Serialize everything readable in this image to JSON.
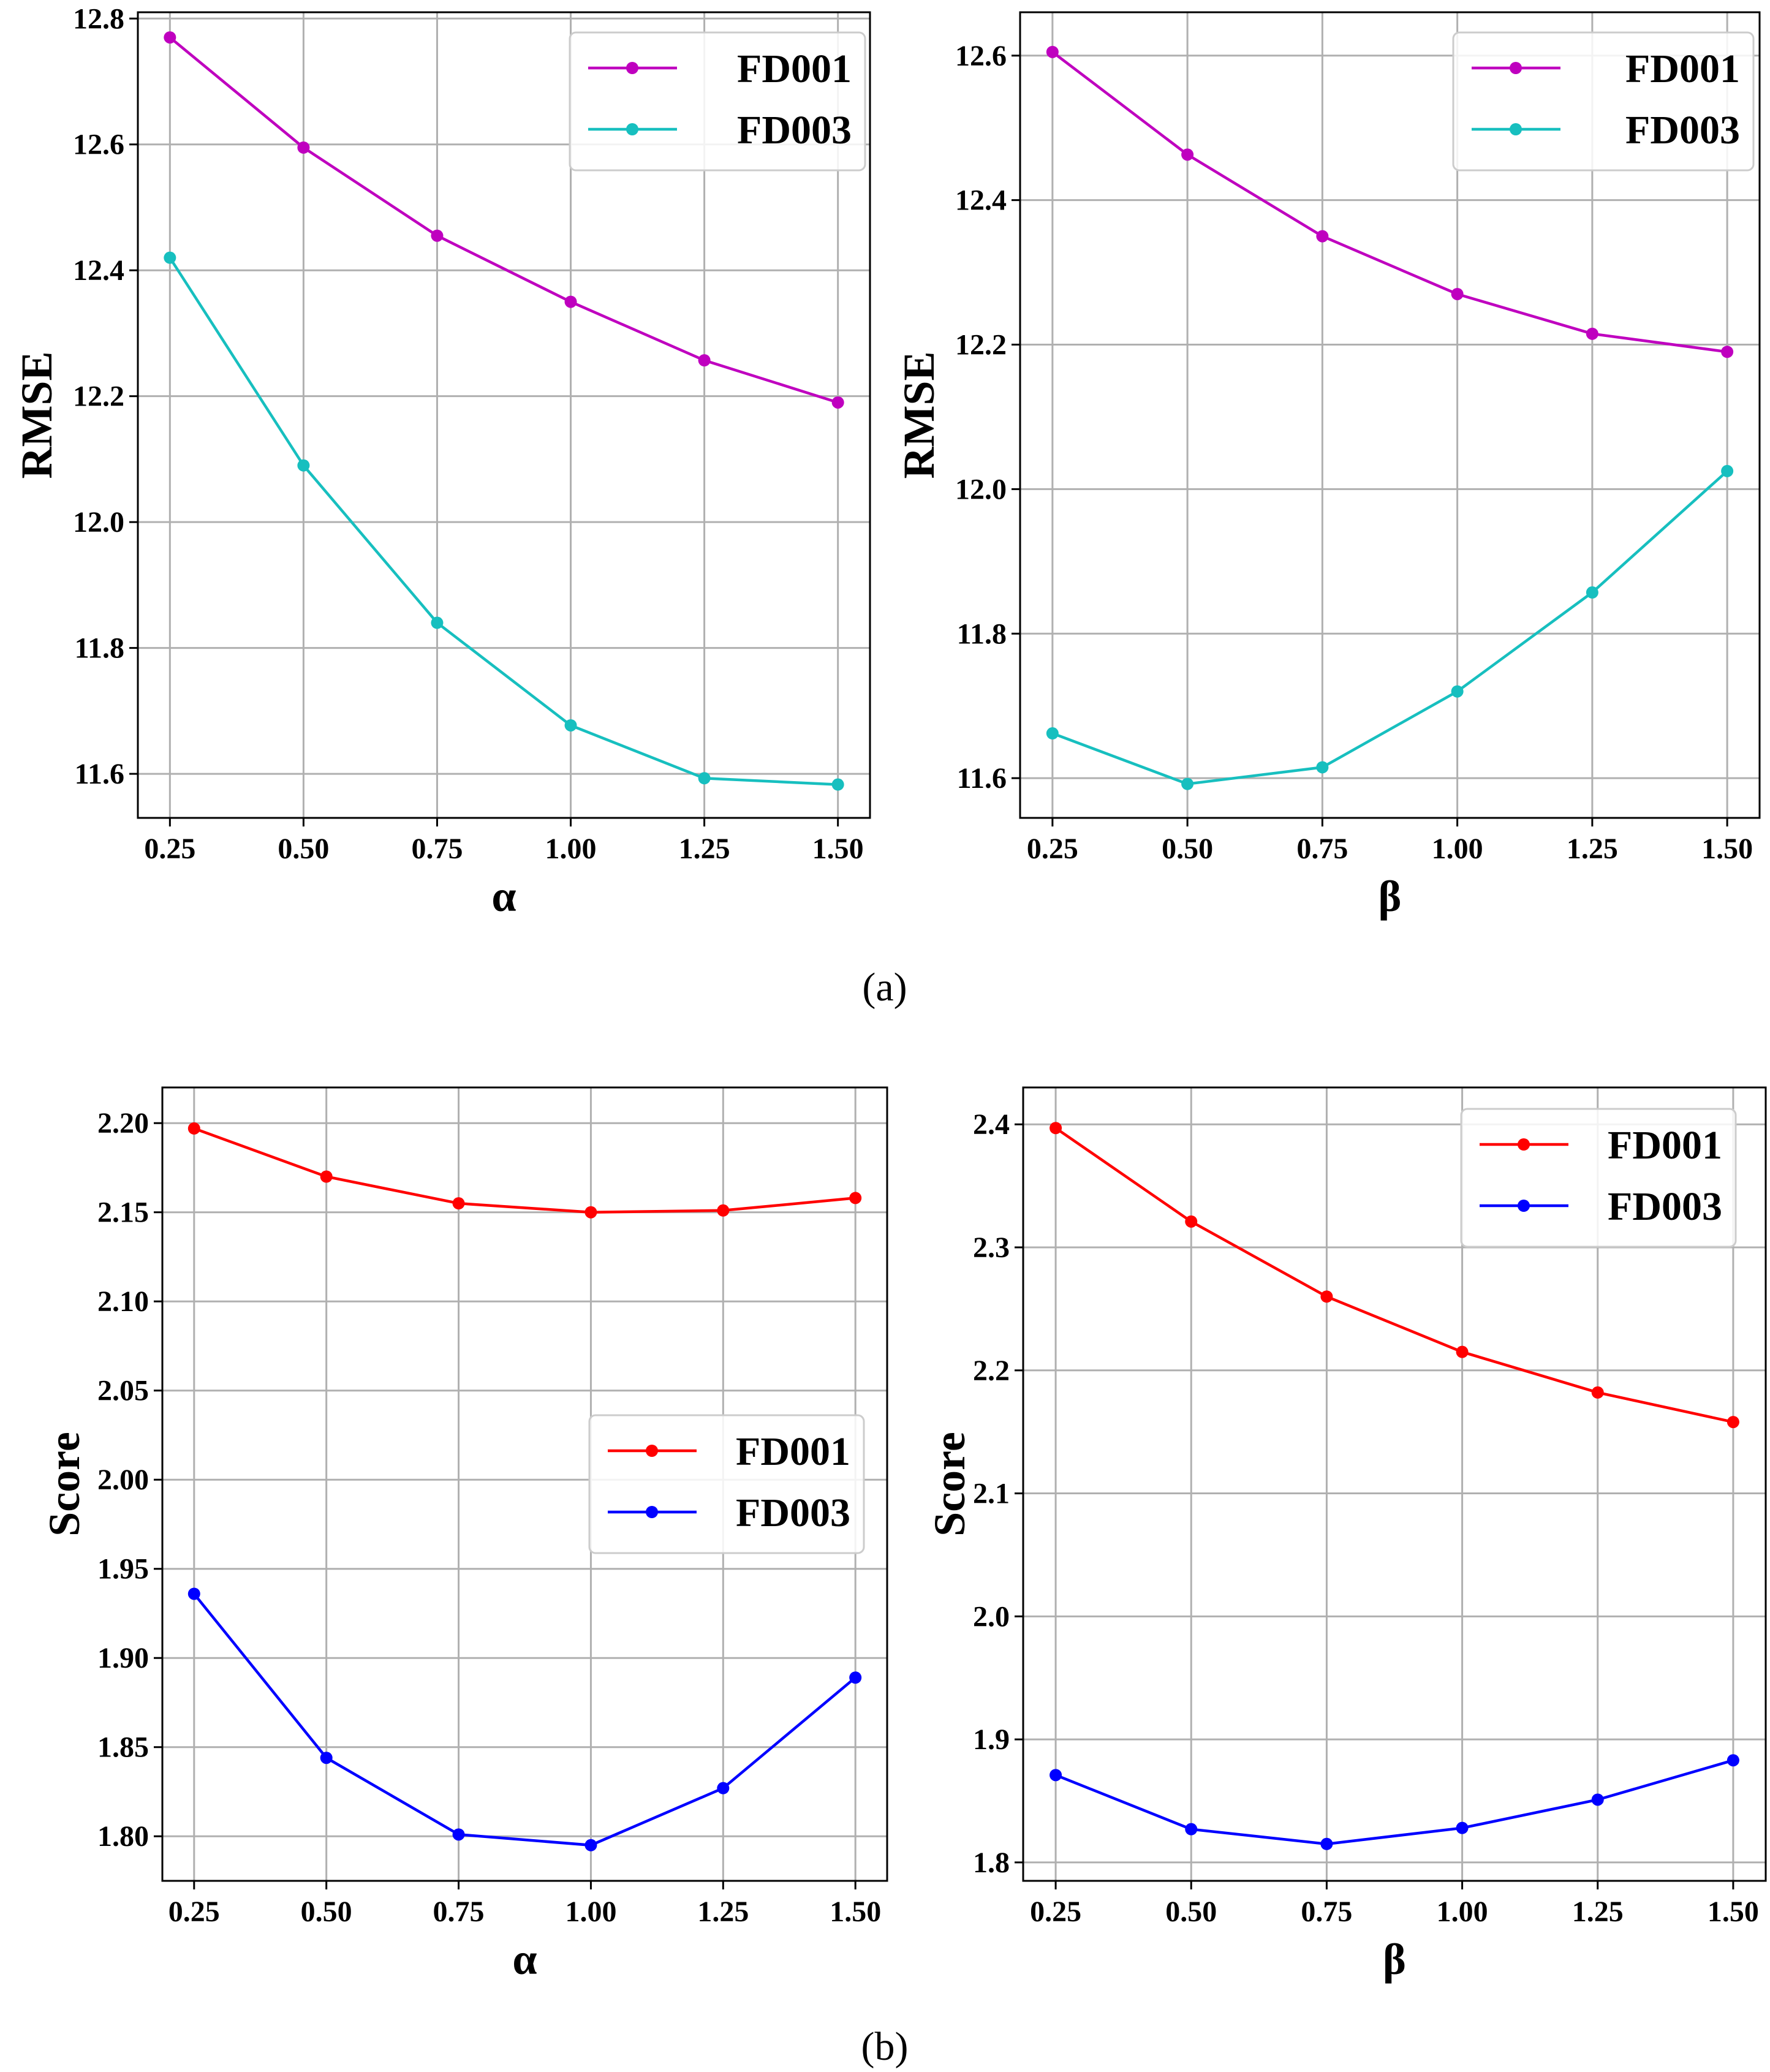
{
  "captions": [
    "(a)",
    "(b)"
  ],
  "chart_data": [
    {
      "type": "line",
      "caption": "(a)",
      "xlabel": "α",
      "ylabel": "RMSE",
      "x": [
        0.25,
        0.5,
        0.75,
        1.0,
        1.25,
        1.5
      ],
      "xticks": [
        "0.25",
        "0.50",
        "0.75",
        "1.00",
        "1.25",
        "1.50"
      ],
      "xlim": [
        0.19,
        1.56
      ],
      "ylim": [
        11.53,
        12.81
      ],
      "yticks": [
        "11.6",
        "11.8",
        "12.0",
        "12.2",
        "12.4",
        "12.6",
        "12.8"
      ],
      "grid": true,
      "legend_position": "top-right",
      "series": [
        {
          "name": "FD001",
          "color": "#bf00bf",
          "values": [
            12.77,
            12.595,
            12.455,
            12.35,
            12.257,
            12.19
          ]
        },
        {
          "name": "FD003",
          "color": "#17bfbf",
          "values": [
            12.42,
            12.09,
            11.84,
            11.677,
            11.593,
            11.583
          ]
        }
      ]
    },
    {
      "type": "line",
      "caption": "(a)",
      "xlabel": "β",
      "ylabel": "RMSE",
      "x": [
        0.25,
        0.5,
        0.75,
        1.0,
        1.25,
        1.5
      ],
      "xticks": [
        "0.25",
        "0.50",
        "0.75",
        "1.00",
        "1.25",
        "1.50"
      ],
      "xlim": [
        0.19,
        1.56
      ],
      "ylim": [
        11.545,
        12.66
      ],
      "yticks": [
        "11.6",
        "11.8",
        "12.0",
        "12.2",
        "12.4",
        "12.6"
      ],
      "grid": true,
      "legend_position": "top-right",
      "series": [
        {
          "name": "FD001",
          "color": "#bf00bf",
          "values": [
            12.605,
            12.463,
            12.35,
            12.27,
            12.215,
            12.19
          ]
        },
        {
          "name": "FD003",
          "color": "#17bfbf",
          "values": [
            11.662,
            11.592,
            11.615,
            11.72,
            11.857,
            12.025
          ]
        }
      ]
    },
    {
      "type": "line",
      "caption": "(b)",
      "xlabel": "α",
      "ylabel": "Score",
      "x": [
        0.25,
        0.5,
        0.75,
        1.0,
        1.25,
        1.5
      ],
      "xticks": [
        "0.25",
        "0.50",
        "0.75",
        "1.00",
        "1.25",
        "1.50"
      ],
      "xlim": [
        0.19,
        1.56
      ],
      "ylim": [
        1.775,
        2.22
      ],
      "yticks": [
        "1.80",
        "1.85",
        "1.90",
        "1.95",
        "2.00",
        "2.05",
        "2.10",
        "2.15",
        "2.20"
      ],
      "grid": true,
      "legend_position": "center-right",
      "series": [
        {
          "name": "FD001",
          "color": "#ff0000",
          "values": [
            2.197,
            2.17,
            2.155,
            2.15,
            2.151,
            2.158
          ]
        },
        {
          "name": "FD003",
          "color": "#0000ff",
          "values": [
            1.936,
            1.844,
            1.801,
            1.795,
            1.827,
            1.889
          ]
        }
      ]
    },
    {
      "type": "line",
      "caption": "(b)",
      "xlabel": "β",
      "ylabel": "Score",
      "x": [
        0.25,
        0.5,
        0.75,
        1.0,
        1.25,
        1.5
      ],
      "xticks": [
        "0.25",
        "0.50",
        "0.75",
        "1.00",
        "1.25",
        "1.50"
      ],
      "xlim": [
        0.19,
        1.56
      ],
      "ylim": [
        1.785,
        2.43
      ],
      "yticks": [
        "1.8",
        "1.9",
        "2.0",
        "2.1",
        "2.2",
        "2.3",
        "2.4"
      ],
      "grid": true,
      "legend_position": "top-right",
      "series": [
        {
          "name": "FD001",
          "color": "#ff0000",
          "values": [
            2.397,
            2.321,
            2.26,
            2.215,
            2.182,
            2.158
          ]
        },
        {
          "name": "FD003",
          "color": "#0000ff",
          "values": [
            1.871,
            1.827,
            1.815,
            1.828,
            1.851,
            1.883
          ]
        }
      ]
    }
  ]
}
